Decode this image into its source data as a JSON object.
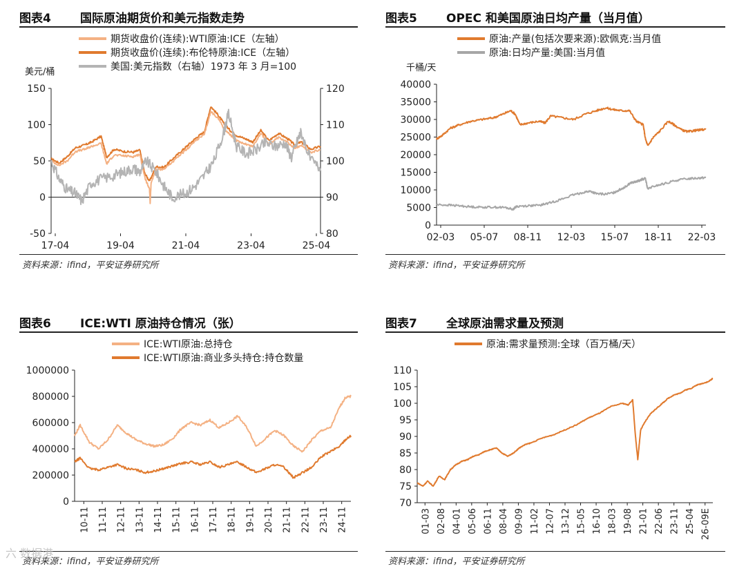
{
  "panels": [
    {
      "id": "fig4",
      "number": "图表4",
      "title": "国际原油期货价和美元指数走势",
      "source": "资料来源：ifind，平安证券研究所",
      "chart_data": {
        "type": "line",
        "left_unit": "美元/桶",
        "legend": [
          {
            "name": "期货收盘价(连续):WTI原油:ICE（左轴）",
            "color": "#f4b183"
          },
          {
            "name": "期货收盘价(连续):布伦特原油:ICE（左轴）",
            "color": "#e07a2e"
          },
          {
            "name": "美国:美元指数（右轴）1973 年 3 月=100",
            "color": "#b4b4b4"
          }
        ],
        "x_ticks": [
          "17-04",
          "19-04",
          "21-04",
          "23-04",
          "25-04"
        ],
        "x_range": [
          2017.25,
          2025.6
        ],
        "y_left": {
          "min": -50,
          "max": 150,
          "ticks": [
            150,
            100,
            50,
            0,
            -50
          ]
        },
        "y_right": {
          "min": 80,
          "max": 120,
          "ticks": [
            120,
            110,
            100,
            90,
            80
          ]
        },
        "series": [
          {
            "name": "期货收盘价(连续):布伦特原油:ICE（左轴）",
            "axis": "left",
            "color": "#e07a2e",
            "x": [
              2017.25,
              2017.5,
              2017.75,
              2018.0,
              2018.3,
              2018.5,
              2018.8,
              2018.97,
              2019.2,
              2019.5,
              2019.8,
              2020.0,
              2020.15,
              2020.3,
              2020.5,
              2020.75,
              2021.0,
              2021.3,
              2021.5,
              2021.75,
              2022.0,
              2022.2,
              2022.45,
              2022.6,
              2022.8,
              2023.0,
              2023.3,
              2023.5,
              2023.75,
              2024.0,
              2024.3,
              2024.6,
              2024.8,
              2025.0,
              2025.3,
              2025.6
            ],
            "y": [
              53,
              47,
              56,
              68,
              72,
              76,
              84,
              55,
              66,
              63,
              62,
              65,
              33,
              22,
              42,
              41,
              52,
              64,
              72,
              82,
              90,
              125,
              112,
              102,
              92,
              85,
              80,
              76,
              92,
              78,
              88,
              80,
              72,
              76,
              66,
              70
            ]
          },
          {
            "name": "期货收盘价(连续):WTI原油:ICE（左轴）",
            "axis": "left",
            "color": "#f4b183",
            "x": [
              2017.25,
              2017.5,
              2017.75,
              2018.0,
              2018.3,
              2018.5,
              2018.8,
              2018.97,
              2019.2,
              2019.5,
              2019.8,
              2020.0,
              2020.15,
              2020.3,
              2020.32,
              2020.35,
              2020.5,
              2020.75,
              2021.0,
              2021.3,
              2021.5,
              2021.75,
              2022.0,
              2022.2,
              2022.45,
              2022.6,
              2022.8,
              2023.0,
              2023.3,
              2023.5,
              2023.75,
              2024.0,
              2024.3,
              2024.6,
              2024.8,
              2025.0,
              2025.3,
              2025.6
            ],
            "y": [
              50,
              44,
              50,
              63,
              66,
              70,
              74,
              46,
              58,
              57,
              56,
              59,
              28,
              10,
              -8,
              20,
              38,
              39,
              48,
              60,
              68,
              79,
              86,
              118,
              108,
              95,
              86,
              78,
              73,
              70,
              88,
              73,
              82,
              75,
              68,
              71,
              62,
              65
            ]
          },
          {
            "name": "美国:美元指数（右轴）1973 年 3 月=100",
            "axis": "right",
            "color": "#b4b4b4",
            "x": [
              2017.25,
              2017.5,
              2017.75,
              2018.0,
              2018.2,
              2018.5,
              2018.8,
              2019.2,
              2019.5,
              2019.8,
              2020.0,
              2020.2,
              2020.5,
              2020.75,
              2021.0,
              2021.4,
              2021.7,
              2022.0,
              2022.3,
              2022.6,
              2022.75,
              2023.0,
              2023.3,
              2023.6,
              2023.9,
              2024.2,
              2024.5,
              2024.7,
              2024.9,
              2025.0,
              2025.3,
              2025.6
            ],
            "y": [
              100,
              95,
              92,
              91,
              89,
              94,
              95,
              96,
              97,
              98,
              97,
              100,
              97,
              93,
              90,
              91,
              93,
              96,
              100,
              108,
              113,
              104,
              102,
              103,
              105,
              104,
              105,
              101,
              106,
              108,
              100,
              98
            ]
          }
        ]
      }
    },
    {
      "id": "fig5",
      "number": "图表5",
      "title": "OPEC 和美国原油日均产量（当月值）",
      "source": "资料来源：ifind，平安证券研究所",
      "chart_data": {
        "type": "line",
        "left_unit": "千桶/天",
        "legend": [
          {
            "name": "原油:产量(包括次要来源):欧佩克:当月值",
            "color": "#e07a2e"
          },
          {
            "name": "原油:日均产量:美国:当月值",
            "color": "#a6a6a6"
          }
        ],
        "x_ticks": [
          "02-03",
          "05-07",
          "08-11",
          "12-03",
          "15-07",
          "18-11",
          "22-03"
        ],
        "x_range": [
          2002.0,
          2025.6
        ],
        "y_left": {
          "min": 0,
          "max": 40000,
          "ticks": [
            40000,
            35000,
            30000,
            25000,
            20000,
            15000,
            10000,
            5000,
            0
          ]
        },
        "series": [
          {
            "name": "原油:产量(包括次要来源):欧佩克:当月值",
            "axis": "left",
            "color": "#e07a2e",
            "x": [
              2002.0,
              2002.5,
              2003.2,
              2004.0,
              2005.0,
              2006.0,
              2007.0,
              2007.8,
              2008.5,
              2008.9,
              2009.3,
              2010.0,
              2011.0,
              2011.5,
              2012.0,
              2013.0,
              2014.0,
              2015.0,
              2016.0,
              2016.8,
              2017.5,
              2018.2,
              2018.9,
              2019.5,
              2020.1,
              2020.3,
              2020.5,
              2021.0,
              2021.5,
              2022.3,
              2022.8,
              2023.5,
              2024.0,
              2024.5,
              2025.0,
              2025.6
            ],
            "y": [
              24500,
              25500,
              27500,
              28500,
              29500,
              30000,
              30500,
              31500,
              32500,
              31500,
              28500,
              29000,
              29500,
              29000,
              31000,
              30500,
              30000,
              31500,
              32500,
              33300,
              32800,
              32500,
              32500,
              29500,
              28500,
              24500,
              22500,
              25000,
              26500,
              29500,
              28500,
              27000,
              26500,
              26800,
              27000,
              27200
            ]
          },
          {
            "name": "原油:日均产量:美国:当月值",
            "axis": "left",
            "color": "#a6a6a6",
            "x": [
              2002.0,
              2003.0,
              2004.0,
              2005.0,
              2006.0,
              2007.0,
              2008.0,
              2008.7,
              2009.0,
              2010.0,
              2011.0,
              2012.0,
              2013.0,
              2014.0,
              2015.0,
              2015.5,
              2016.0,
              2016.8,
              2017.5,
              2018.0,
              2018.5,
              2019.0,
              2019.5,
              2020.0,
              2020.3,
              2020.5,
              2021.0,
              2022.0,
              2023.0,
              2024.0,
              2025.0,
              2025.6
            ],
            "y": [
              5800,
              5700,
              5500,
              5200,
              5100,
              5100,
              5000,
              4500,
              5300,
              5500,
              5600,
              6400,
              7400,
              8600,
              9400,
              9600,
              8900,
              8800,
              9200,
              10000,
              10800,
              12000,
              12300,
              13000,
              13200,
              10200,
              11000,
              11800,
              12700,
              13200,
              13400,
              13500
            ]
          }
        ]
      }
    },
    {
      "id": "fig6",
      "number": "图表6",
      "title": "ICE:WTI 原油持仓情况（张）",
      "source": "资料来源：ifind，平安证券研究所",
      "chart_data": {
        "type": "line",
        "legend": [
          {
            "name": "ICE:WTI原油:总持仓",
            "color": "#f4b183"
          },
          {
            "name": "ICE:WTI原油:商业多头持仓:持仓数量",
            "color": "#e07a2e"
          }
        ],
        "x_ticks": [
          "10-11",
          "11-11",
          "12-11",
          "13-11",
          "14-11",
          "15-11",
          "16-11",
          "17-11",
          "18-11",
          "19-11",
          "20-11",
          "21-11",
          "22-11",
          "23-11",
          "24-11"
        ],
        "x_range": [
          2010.7,
          2025.6
        ],
        "y_left": {
          "min": 0,
          "max": 1000000,
          "ticks": [
            1000000,
            800000,
            600000,
            400000,
            200000,
            0
          ]
        },
        "series": [
          {
            "name": "ICE:WTI原油:总持仓",
            "axis": "left",
            "color": "#f4b183",
            "x": [
              2010.7,
              2011.0,
              2011.5,
              2012.0,
              2012.5,
              2013.0,
              2013.5,
              2014.0,
              2014.5,
              2015.0,
              2015.5,
              2016.0,
              2016.5,
              2017.0,
              2017.5,
              2018.0,
              2018.5,
              2019.0,
              2019.5,
              2020.0,
              2020.5,
              2021.0,
              2021.5,
              2022.0,
              2022.5,
              2023.0,
              2023.5,
              2024.0,
              2024.5,
              2025.0,
              2025.3,
              2025.6
            ],
            "y": [
              500000,
              580000,
              450000,
              400000,
              470000,
              580000,
              520000,
              470000,
              440000,
              420000,
              430000,
              480000,
              560000,
              600000,
              580000,
              620000,
              560000,
              600000,
              650000,
              560000,
              420000,
              480000,
              540000,
              500000,
              420000,
              380000,
              470000,
              540000,
              560000,
              720000,
              790000,
              800000
            ]
          },
          {
            "name": "ICE:WTI原油:商业多头持仓:持仓数量",
            "axis": "left",
            "color": "#e07a2e",
            "x": [
              2010.7,
              2011.0,
              2011.5,
              2012.0,
              2012.5,
              2013.0,
              2013.5,
              2014.0,
              2014.5,
              2015.0,
              2015.5,
              2016.0,
              2016.5,
              2017.0,
              2017.5,
              2018.0,
              2018.5,
              2019.0,
              2019.5,
              2020.0,
              2020.5,
              2021.0,
              2021.5,
              2022.0,
              2022.5,
              2023.0,
              2023.5,
              2024.0,
              2024.5,
              2025.0,
              2025.3,
              2025.6
            ],
            "y": [
              300000,
              330000,
              250000,
              240000,
              260000,
              280000,
              250000,
              240000,
              220000,
              230000,
              250000,
              270000,
              290000,
              300000,
              280000,
              300000,
              260000,
              280000,
              300000,
              260000,
              220000,
              250000,
              280000,
              260000,
              180000,
              220000,
              260000,
              340000,
              380000,
              420000,
              470000,
              500000
            ]
          }
        ]
      }
    },
    {
      "id": "fig7",
      "number": "图表7",
      "title": "全球原油需求量及预测",
      "source": "资料来源：ifind，平安证券研究所",
      "chart_data": {
        "type": "line",
        "legend": [
          {
            "name": "原油:需求量预测:全球（百万桶/天）",
            "color": "#e07a2e"
          }
        ],
        "x_ticks": [
          "01-03",
          "02-08",
          "04-01",
          "05-06",
          "06-11",
          "08-04",
          "09-09",
          "11-02",
          "12-07",
          "13-12",
          "15-05",
          "16-10",
          "18-03",
          "19-08",
          "21-01",
          "22-06",
          "23-11",
          "25-04",
          "26-09E"
        ],
        "x_range": [
          2001.1,
          2026.9
        ],
        "y_left": {
          "min": 70,
          "max": 110,
          "ticks": [
            110,
            105,
            100,
            95,
            90,
            85,
            80,
            75,
            70
          ]
        },
        "series": [
          {
            "name": "原油:需求量预测:全球（百万桶/天）",
            "axis": "left",
            "color": "#e07a2e",
            "x": [
              2001.1,
              2001.6,
              2002.0,
              2002.5,
              2003.0,
              2003.5,
              2004.0,
              2004.5,
              2005.0,
              2005.5,
              2006.0,
              2006.5,
              2007.0,
              2007.5,
              2008.0,
              2008.5,
              2009.0,
              2009.5,
              2010.0,
              2010.5,
              2011.0,
              2012.0,
              2013.0,
              2014.0,
              2015.0,
              2016.0,
              2017.0,
              2018.0,
              2019.0,
              2019.5,
              2019.9,
              2020.15,
              2020.35,
              2020.6,
              2021.0,
              2021.5,
              2022.0,
              2022.5,
              2023.0,
              2023.5,
              2024.0,
              2024.5,
              2025.0,
              2025.5,
              2026.0,
              2026.5,
              2026.9
            ],
            "y": [
              76,
              75,
              76.5,
              75,
              78,
              77,
              80,
              81.5,
              82.5,
              83,
              84,
              84.5,
              85.5,
              86,
              86.5,
              85,
              84,
              85,
              86.5,
              87.5,
              88,
              89.5,
              90.5,
              92,
              93.5,
              95.5,
              97,
              99,
              100,
              99.5,
              101,
              90,
              83,
              92,
              94.5,
              97,
              98.5,
              100,
              101.5,
              102.5,
              103,
              104,
              104.5,
              105.5,
              106,
              106.5,
              107.5
            ]
          }
        ]
      }
    }
  ],
  "watermark": "六 数据港"
}
